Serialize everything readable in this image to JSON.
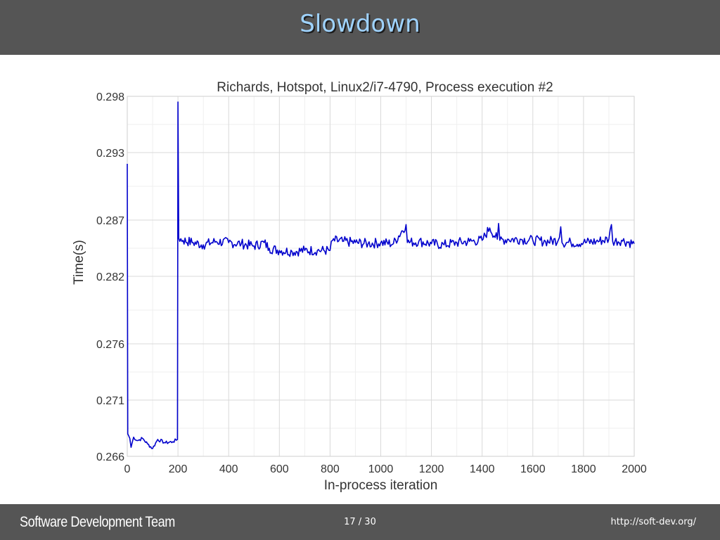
{
  "header": {
    "title": "Slowdown"
  },
  "footer": {
    "team": "Software Development Team",
    "page": "17 / 30",
    "url": "http://soft-dev.org/"
  },
  "colors": {
    "bar": "#555555",
    "title": "#9fd3ff",
    "series": "#0000cc"
  },
  "chart_data": {
    "type": "line",
    "title": "Richards, Hotspot, Linux2/i7-4790, Process execution #2",
    "xlabel": "In-process iteration",
    "ylabel": "Time(s)",
    "xlim": [
      0,
      2000
    ],
    "ylim": [
      0.266,
      0.298
    ],
    "xticks": [
      0,
      200,
      400,
      600,
      800,
      1000,
      1200,
      1400,
      1600,
      1800,
      2000
    ],
    "yticks": [
      0.266,
      0.271,
      0.276,
      0.282,
      0.287,
      0.293,
      0.298
    ],
    "grid": true,
    "series": [
      {
        "name": "",
        "points": [
          [
            0,
            0.292
          ],
          [
            2,
            0.268
          ],
          [
            10,
            0.2676
          ],
          [
            15,
            0.2668
          ],
          [
            25,
            0.2677
          ],
          [
            40,
            0.2674
          ],
          [
            60,
            0.2676
          ],
          [
            80,
            0.2671
          ],
          [
            100,
            0.2667
          ],
          [
            120,
            0.2675
          ],
          [
            150,
            0.2672
          ],
          [
            180,
            0.2673
          ],
          [
            198,
            0.2675
          ],
          [
            200,
            0.2975
          ],
          [
            203,
            0.2854
          ],
          [
            220,
            0.2852
          ],
          [
            260,
            0.285
          ],
          [
            300,
            0.2848
          ],
          [
            350,
            0.2851
          ],
          [
            400,
            0.285
          ],
          [
            450,
            0.2849
          ],
          [
            500,
            0.2847
          ],
          [
            540,
            0.285
          ],
          [
            560,
            0.2845
          ],
          [
            600,
            0.2843
          ],
          [
            650,
            0.2842
          ],
          [
            700,
            0.2843
          ],
          [
            750,
            0.2843
          ],
          [
            800,
            0.2843
          ],
          [
            810,
            0.2852
          ],
          [
            850,
            0.2851
          ],
          [
            900,
            0.285
          ],
          [
            950,
            0.2849
          ],
          [
            1000,
            0.285
          ],
          [
            1050,
            0.2849
          ],
          [
            1100,
            0.2866
          ],
          [
            1105,
            0.285
          ],
          [
            1150,
            0.2851
          ],
          [
            1200,
            0.2849
          ],
          [
            1250,
            0.2848
          ],
          [
            1300,
            0.285
          ],
          [
            1350,
            0.2851
          ],
          [
            1400,
            0.2852
          ],
          [
            1430,
            0.2863
          ],
          [
            1460,
            0.2853
          ],
          [
            1465,
            0.2867
          ],
          [
            1470,
            0.2852
          ],
          [
            1500,
            0.2853
          ],
          [
            1550,
            0.2853
          ],
          [
            1600,
            0.2852
          ],
          [
            1650,
            0.2851
          ],
          [
            1700,
            0.2852
          ],
          [
            1710,
            0.2864
          ],
          [
            1715,
            0.285
          ],
          [
            1750,
            0.285
          ],
          [
            1800,
            0.285
          ],
          [
            1850,
            0.2851
          ],
          [
            1900,
            0.2853
          ],
          [
            1910,
            0.2866
          ],
          [
            1915,
            0.2851
          ],
          [
            1950,
            0.2852
          ],
          [
            2000,
            0.2849
          ]
        ]
      }
    ]
  }
}
